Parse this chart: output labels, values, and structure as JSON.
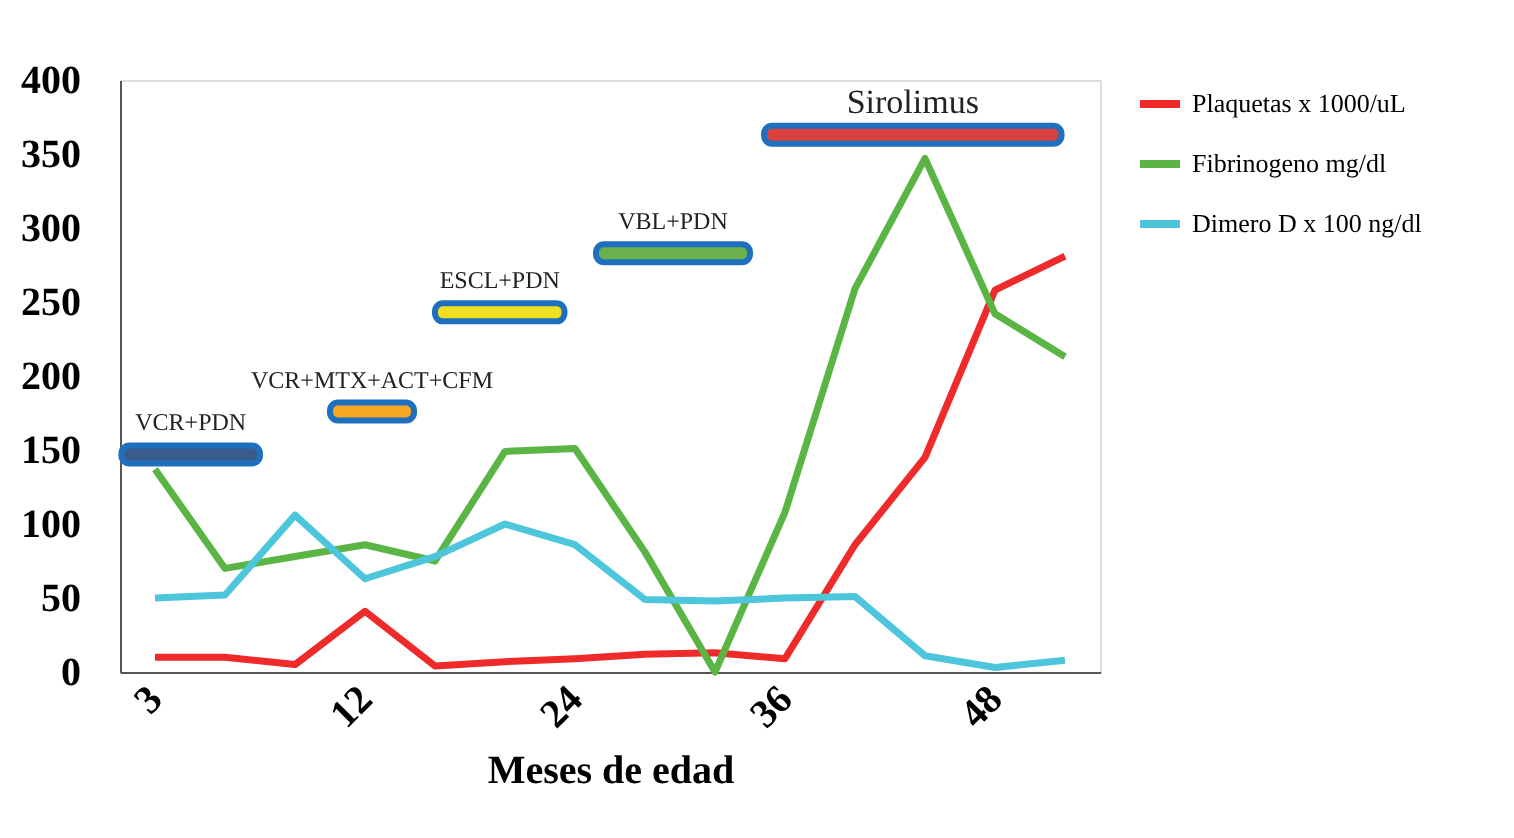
{
  "chart_data": {
    "type": "line",
    "xlabel": "Meses de edad",
    "categories": [
      "3",
      null,
      null,
      "12",
      null,
      null,
      "24",
      null,
      null,
      "36",
      null,
      null,
      "48",
      null
    ],
    "series": [
      {
        "name": "Plaquetas x 1000/uL",
        "color": "#ee2a2a",
        "values": [
          10,
          10,
          5,
          41,
          4,
          7,
          9,
          12,
          13,
          9,
          86,
          145,
          258,
          281
        ]
      },
      {
        "name": "Fibrinogeno mg/dl",
        "color": "#5ab545",
        "values": [
          137,
          70,
          78,
          86,
          75,
          149,
          151,
          81,
          0,
          108,
          259,
          347,
          242,
          213
        ]
      },
      {
        "name": "Dimero D x 100 ng/dl",
        "color": "#4dc6dc",
        "values": [
          50,
          52,
          106,
          63,
          78,
          100,
          86,
          49,
          48,
          50,
          51,
          11,
          3,
          8
        ]
      }
    ],
    "ylim": [
      0,
      400
    ],
    "yticks": [
      0,
      50,
      100,
      150,
      200,
      250,
      300,
      350,
      400
    ],
    "grid": false,
    "legend": "right",
    "annotations": [
      "VCR+PDN",
      "VCR+MTX+ACT+CFM",
      "ESCL+PDN",
      "VBL+PDN",
      "Sirolimus"
    ]
  }
}
